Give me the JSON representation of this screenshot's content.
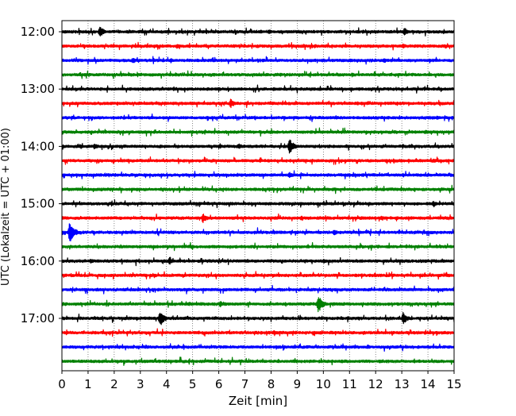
{
  "chart_data": {
    "type": "line",
    "title": "",
    "xlabel": "Zeit  [min]",
    "ylabel": "UTC (Lokalzeit = UTC + 01:00)",
    "xlim": [
      0,
      15
    ],
    "x_ticks": [
      0,
      1,
      2,
      3,
      4,
      5,
      6,
      7,
      8,
      9,
      10,
      11,
      12,
      13,
      14,
      15
    ],
    "x_tick_labels": [
      "0",
      "1",
      "2",
      "3",
      "4",
      "5",
      "6",
      "7",
      "8",
      "9",
      "10",
      "11",
      "12",
      "13",
      "14",
      "15"
    ],
    "y_ticks": [
      "12:00",
      "13:00",
      "14:00",
      "15:00",
      "16:00",
      "17:00"
    ],
    "grid": "vertical dotted",
    "legend": "none",
    "trace_colors": [
      "#000000",
      "#ff0000",
      "#0000ff",
      "#008000"
    ],
    "series": [
      {
        "start": "12:00",
        "color": "#000000",
        "events": [
          {
            "t": 1.45,
            "amp": 7
          },
          {
            "t": 13.1,
            "amp": 5
          },
          {
            "t": 7.9,
            "amp": 3
          }
        ]
      },
      {
        "start": "12:15",
        "color": "#ff0000",
        "events": [
          {
            "t": 4.4,
            "amp": 3
          },
          {
            "t": 13.05,
            "amp": 3
          }
        ]
      },
      {
        "start": "12:30",
        "color": "#0000ff",
        "events": [
          {
            "t": 2.7,
            "amp": 4
          },
          {
            "t": 12.3,
            "amp": 3
          }
        ]
      },
      {
        "start": "12:45",
        "color": "#008000",
        "events": [
          {
            "t": 11.1,
            "amp": 3
          },
          {
            "t": 10.55,
            "amp": 2
          }
        ]
      },
      {
        "start": "13:00",
        "color": "#000000",
        "events": [
          {
            "t": 8.1,
            "amp": 3
          }
        ]
      },
      {
        "start": "13:15",
        "color": "#ff0000",
        "events": [
          {
            "t": 6.45,
            "amp": 6
          },
          {
            "t": 1.25,
            "amp": 2
          }
        ]
      },
      {
        "start": "13:30",
        "color": "#0000ff",
        "events": [
          {
            "t": 0.4,
            "amp": 2
          },
          {
            "t": 14.35,
            "amp": 3
          }
        ]
      },
      {
        "start": "13:45",
        "color": "#008000",
        "events": [
          {
            "t": 13.9,
            "amp": 3
          },
          {
            "t": 5.7,
            "amp": 2
          }
        ]
      },
      {
        "start": "14:00",
        "color": "#000000",
        "events": [
          {
            "t": 8.7,
            "amp": 11
          },
          {
            "t": 1.25,
            "amp": 4
          },
          {
            "t": 6.75,
            "amp": 4
          }
        ]
      },
      {
        "start": "14:15",
        "color": "#ff0000",
        "events": [
          {
            "t": 14.2,
            "amp": 3
          },
          {
            "t": 3.3,
            "amp": 2
          }
        ]
      },
      {
        "start": "14:30",
        "color": "#0000ff",
        "events": [
          {
            "t": 8.7,
            "amp": 4
          },
          {
            "t": 10.85,
            "amp": 2
          }
        ]
      },
      {
        "start": "14:45",
        "color": "#008000",
        "events": [
          {
            "t": 10.2,
            "amp": 2
          }
        ]
      },
      {
        "start": "15:00",
        "color": "#000000",
        "events": [
          {
            "t": 14.2,
            "amp": 4
          },
          {
            "t": 4.5,
            "amp": 2
          }
        ]
      },
      {
        "start": "15:15",
        "color": "#ff0000",
        "events": [
          {
            "t": 5.4,
            "amp": 6
          },
          {
            "t": 9.15,
            "amp": 3
          },
          {
            "t": 12.2,
            "amp": 3
          }
        ]
      },
      {
        "start": "15:30",
        "color": "#0000ff",
        "events": [
          {
            "t": 0.3,
            "amp": 15
          },
          {
            "t": 10.4,
            "amp": 4
          }
        ]
      },
      {
        "start": "15:45",
        "color": "#008000",
        "events": [
          {
            "t": 8.1,
            "amp": 2
          }
        ]
      },
      {
        "start": "16:00",
        "color": "#000000",
        "events": [
          {
            "t": 4.1,
            "amp": 4
          },
          {
            "t": 1.1,
            "amp": 3
          },
          {
            "t": 10.0,
            "amp": 3
          }
        ]
      },
      {
        "start": "16:15",
        "color": "#ff0000",
        "events": [
          {
            "t": 12.2,
            "amp": 2
          },
          {
            "t": 1.85,
            "amp": 2
          }
        ]
      },
      {
        "start": "16:30",
        "color": "#0000ff",
        "events": [
          {
            "t": 2.3,
            "amp": 2
          },
          {
            "t": 7.9,
            "amp": 2
          }
        ]
      },
      {
        "start": "16:45",
        "color": "#008000",
        "events": [
          {
            "t": 9.8,
            "amp": 12
          },
          {
            "t": 6.05,
            "amp": 4
          },
          {
            "t": 4.85,
            "amp": 3
          },
          {
            "t": 0.9,
            "amp": 2
          }
        ]
      },
      {
        "start": "17:00",
        "color": "#000000",
        "events": [
          {
            "t": 3.75,
            "amp": 11
          },
          {
            "t": 13.05,
            "amp": 8
          }
        ]
      },
      {
        "start": "17:15",
        "color": "#ff0000",
        "events": [
          {
            "t": 8.1,
            "amp": 3
          },
          {
            "t": 11.5,
            "amp": 2
          },
          {
            "t": 0.2,
            "amp": 2
          }
        ]
      },
      {
        "start": "17:30",
        "color": "#0000ff",
        "events": [
          {
            "t": 11.7,
            "amp": 3
          },
          {
            "t": 2.2,
            "amp": 2
          }
        ]
      },
      {
        "start": "17:45",
        "color": "#008000",
        "events": [
          {
            "t": 11.75,
            "amp": 2
          }
        ]
      }
    ]
  }
}
